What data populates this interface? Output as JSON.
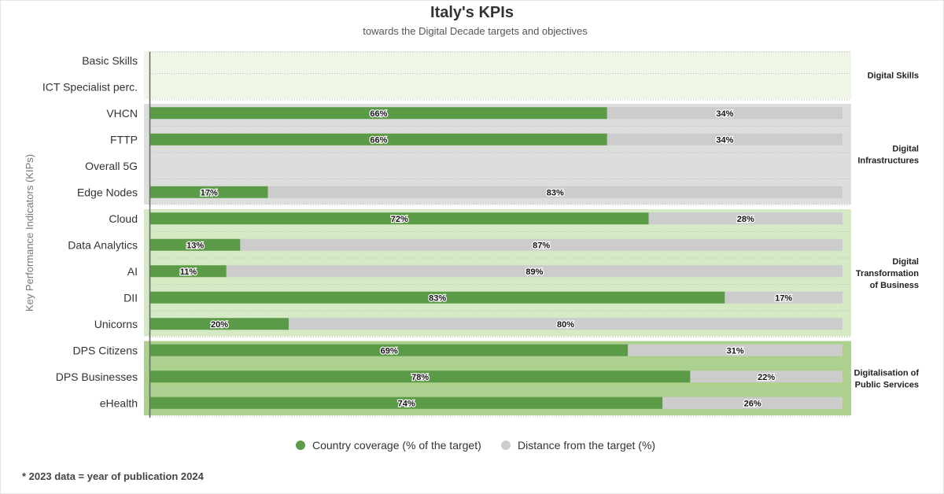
{
  "footnote": "* 2023 data = year of publication 2024",
  "chart_data": {
    "type": "bar",
    "orientation": "horizontal",
    "stacked": true,
    "title": "Italy's KPIs",
    "subtitle": "towards the Digital Decade targets and objectives",
    "ylabel": "Key Performance Indicators (KIPs)",
    "xlim": [
      0,
      100
    ],
    "grid": true,
    "legend_position": "bottom",
    "categories": [
      "Basic Skills",
      "ICT Specialist perc.",
      "VHCN",
      "FTTP",
      "Overall 5G",
      "Edge Nodes",
      "Cloud",
      "Data Analytics",
      "AI",
      "DII",
      "Unicorns",
      "DPS Citizens",
      "DPS Businesses",
      "eHealth"
    ],
    "series": [
      {
        "name": "Country coverage (% of the target)",
        "color": "#5b9a46",
        "values": [
          null,
          null,
          66,
          66,
          null,
          17,
          72,
          13,
          11,
          83,
          20,
          69,
          78,
          74
        ]
      },
      {
        "name": "Distance from the target (%)",
        "color": "#cccccc",
        "values": [
          null,
          null,
          34,
          34,
          null,
          83,
          28,
          87,
          89,
          17,
          80,
          31,
          22,
          26
        ]
      }
    ],
    "groups": [
      {
        "label_lines": [
          "Digital Skills"
        ],
        "first": 0,
        "last": 1,
        "color": "#eff6e8"
      },
      {
        "label_lines": [
          "Digital",
          "Infrastructures"
        ],
        "first": 2,
        "last": 5,
        "color": "#dcdedc"
      },
      {
        "label_lines": [
          "Digital",
          "Transformation",
          "of Business"
        ],
        "first": 6,
        "last": 10,
        "color": "#d5e9c5"
      },
      {
        "label_lines": [
          "Digitalisation of",
          "Public Services"
        ],
        "first": 11,
        "last": 13,
        "color": "#acd08d"
      }
    ]
  }
}
